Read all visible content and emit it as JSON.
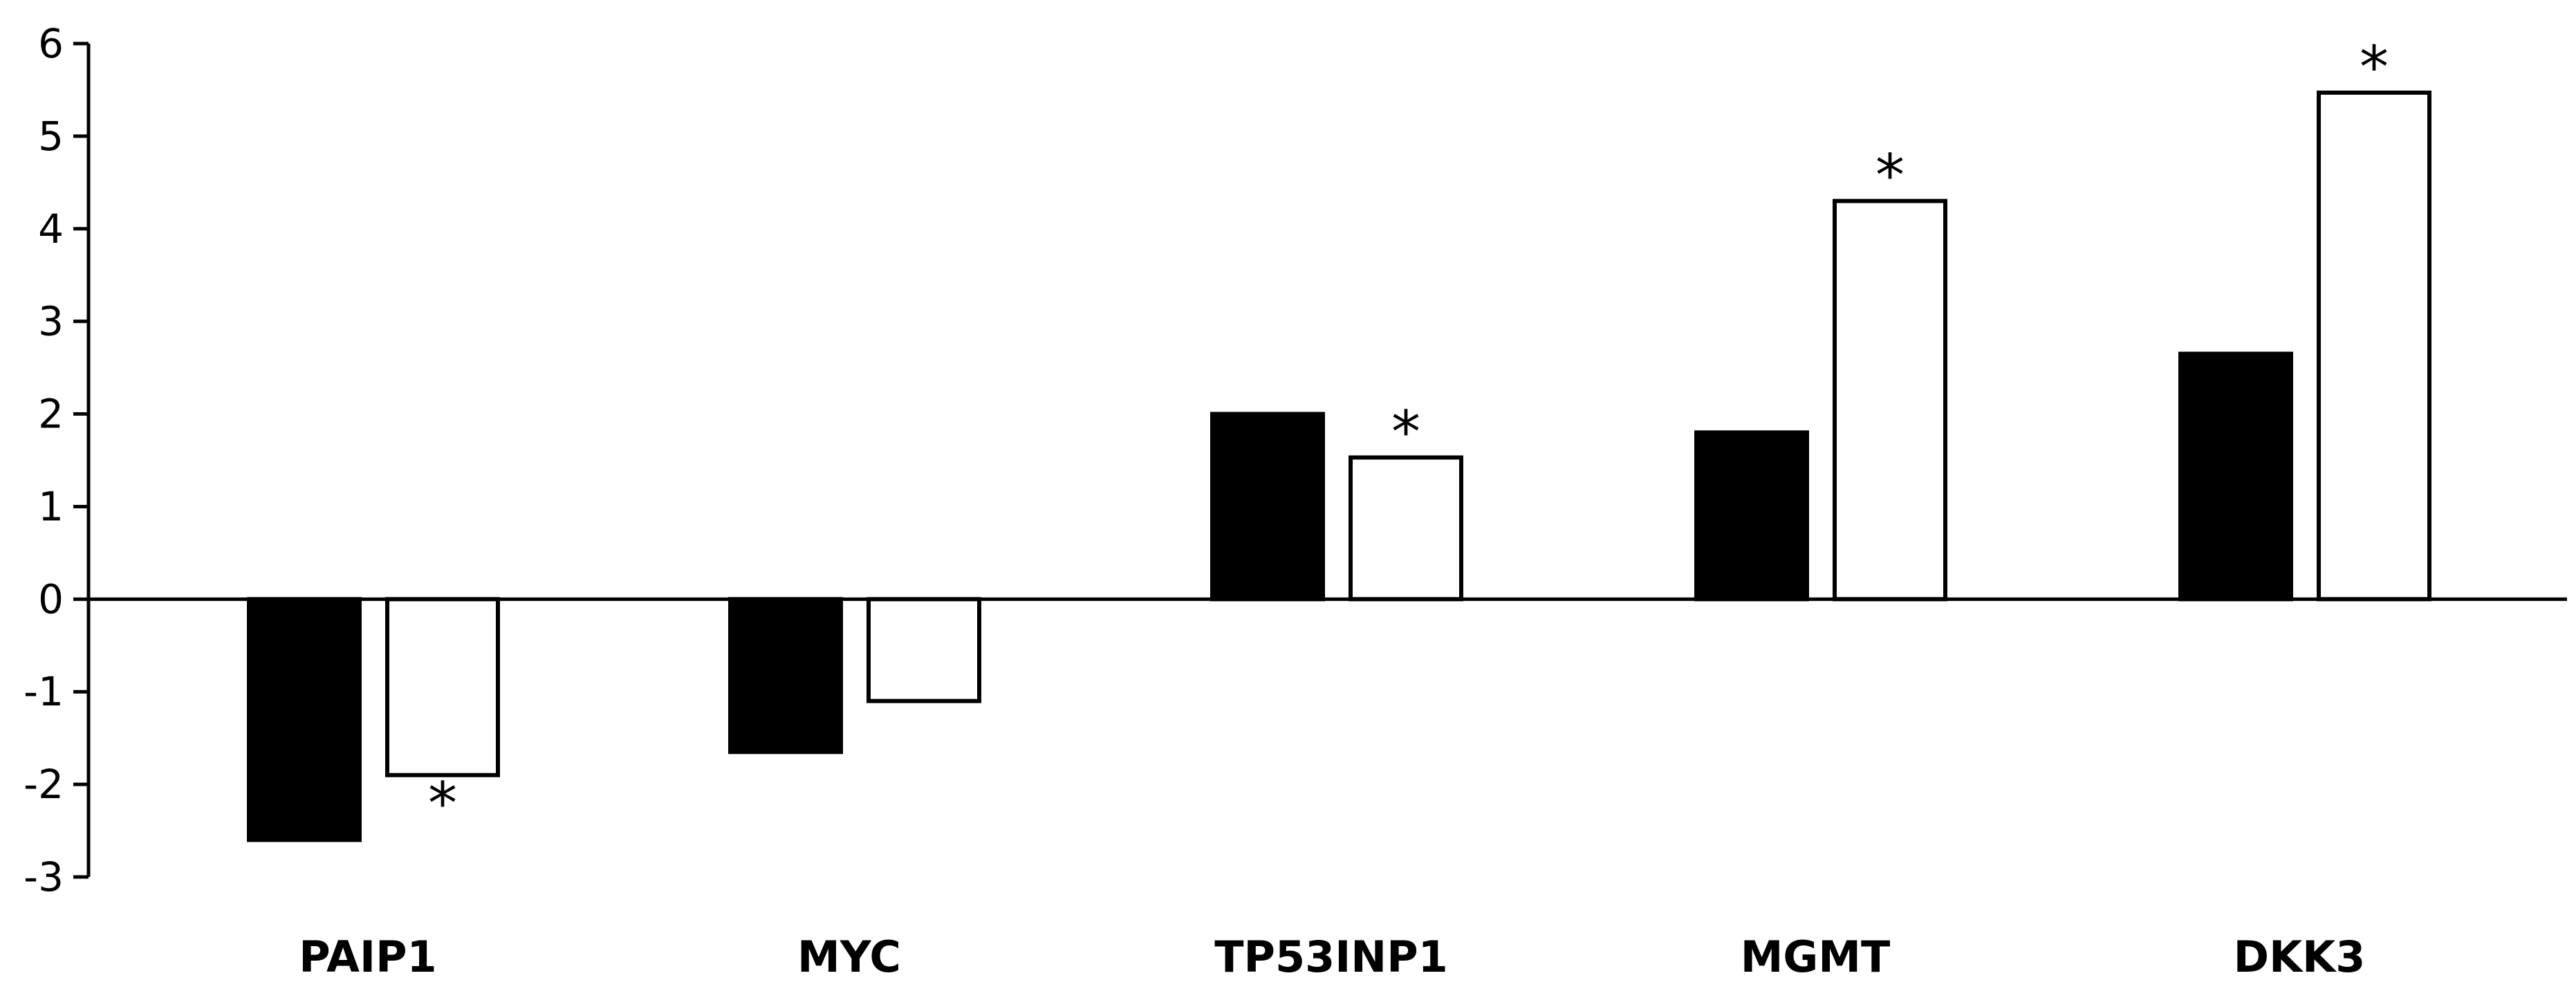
{
  "chart_data": {
    "type": "bar",
    "title": "",
    "xlabel": "",
    "ylabel": "",
    "ylim": [
      -3,
      6
    ],
    "yticks": [
      6,
      5,
      4,
      3,
      2,
      1,
      0,
      -1,
      -2,
      -3
    ],
    "grid": false,
    "categories": [
      "PAIP1",
      "MYC",
      "TP53INP1",
      "MGMT",
      "DKK3"
    ],
    "series": [
      {
        "name": "series-1",
        "fill": "#000000",
        "values": [
          -2.6,
          -1.65,
          2.0,
          1.8,
          2.65
        ]
      },
      {
        "name": "series-2",
        "fill": "#ffffff",
        "values": [
          -1.9,
          -1.1,
          1.53,
          4.3,
          5.47
        ]
      }
    ],
    "annotations": [
      {
        "category": "PAIP1",
        "series": 1,
        "text": "*"
      },
      {
        "category": "TP53INP1",
        "series": 1,
        "text": "*"
      },
      {
        "category": "MGMT",
        "series": 1,
        "text": "*"
      },
      {
        "category": "DKK3",
        "series": 1,
        "text": "*"
      }
    ]
  }
}
